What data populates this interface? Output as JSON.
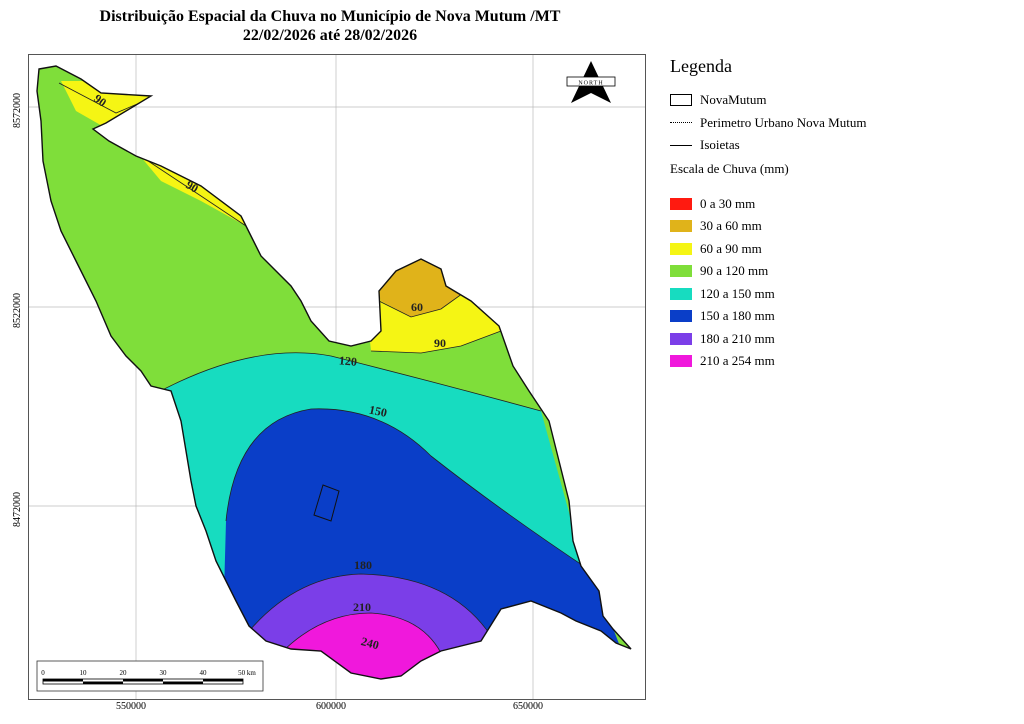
{
  "title_line1": "Distribuição Espacial da Chuva no Município de Nova Mutum /MT",
  "title_line2": "22/02/2026 até 28/02/2026",
  "y_ticks": [
    "8572000",
    "8522000",
    "8472000"
  ],
  "x_ticks": [
    "550000",
    "600000",
    "650000"
  ],
  "north_arrow_text": "NORTH",
  "scale_bar": {
    "labels": [
      "0",
      "10",
      "20",
      "30",
      "40",
      "50 km"
    ]
  },
  "isohyet_labels": [
    "90",
    "90",
    "60",
    "90",
    "120",
    "150",
    "180",
    "210",
    "240"
  ],
  "legend": {
    "title": "Legenda",
    "items": [
      {
        "label": "NovaMutum"
      },
      {
        "label": "Perimetro Urbano Nova Mutum"
      },
      {
        "label": "Isoietas"
      }
    ],
    "scale_title": "Escala de Chuva (mm)",
    "classes": [
      {
        "label": "0 a 30 mm",
        "color": "#ff1a10"
      },
      {
        "label": "30 a 60 mm",
        "color": "#e0b31a"
      },
      {
        "label": "60 a 90 mm",
        "color": "#f5f514"
      },
      {
        "label": "90 a 120 mm",
        "color": "#7fde3a"
      },
      {
        "label": "120 a 150 mm",
        "color": "#17dcc0"
      },
      {
        "label": "150 a 180 mm",
        "color": "#0a3ec8"
      },
      {
        "label": "180 a 210 mm",
        "color": "#7b3ee8"
      },
      {
        "label": "210 a 254 mm",
        "color": "#f018dc"
      }
    ]
  }
}
